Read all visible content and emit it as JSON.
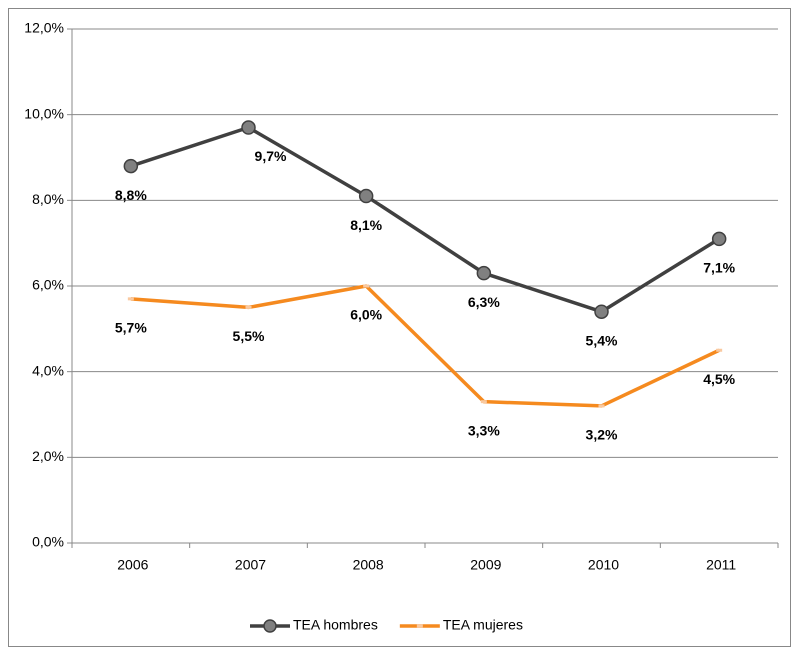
{
  "chart_data": {
    "type": "line",
    "categories": [
      "2006",
      "2007",
      "2008",
      "2009",
      "2010",
      "2011"
    ],
    "series": [
      {
        "name": "TEA hombres",
        "color": "#404040",
        "values": [
          8.8,
          9.7,
          8.1,
          6.3,
          5.4,
          7.1
        ],
        "value_labels": [
          "8,8%",
          "9,7%",
          "8,1%",
          "6,3%",
          "5,4%",
          "7,1%"
        ]
      },
      {
        "name": "TEA mujeres",
        "color": "#f58a1f",
        "values": [
          5.7,
          5.5,
          6.0,
          3.3,
          3.2,
          4.5
        ],
        "value_labels": [
          "5,7%",
          "5,5%",
          "6,0%",
          "3,3%",
          "3,2%",
          "4,5%"
        ]
      }
    ],
    "ylim": [
      0,
      12
    ],
    "yticks": [
      {
        "value": 0,
        "label": "0,0%"
      },
      {
        "value": 2,
        "label": "2,0%"
      },
      {
        "value": 4,
        "label": "4,0%"
      },
      {
        "value": 6,
        "label": "6,0%"
      },
      {
        "value": 8,
        "label": "8,0%"
      },
      {
        "value": 10,
        "label": "10,0%"
      },
      {
        "value": 12,
        "label": "12,0%"
      }
    ],
    "grid": true,
    "legend": "bottom"
  }
}
